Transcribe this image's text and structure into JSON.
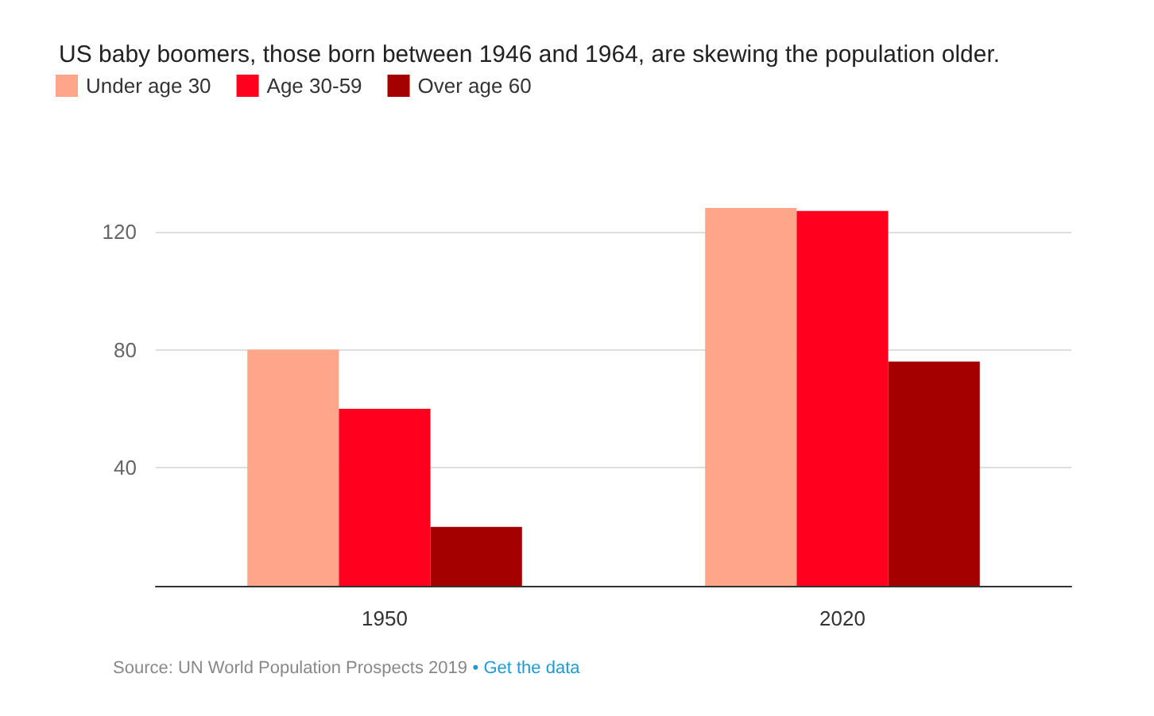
{
  "chart_data": {
    "type": "bar",
    "title": "US baby boomers, those born between 1946 and 1964, are skewing the population older.",
    "categories": [
      "1950",
      "2020"
    ],
    "series": [
      {
        "name": "Under age 30",
        "color": "#ffa68a",
        "values": [
          80,
          128
        ]
      },
      {
        "name": "Age 30-59",
        "color": "#ff001f",
        "values": [
          60,
          127
        ]
      },
      {
        "name": "Over age 60",
        "color": "#a50000",
        "values": [
          20,
          76
        ]
      }
    ],
    "ylim": [
      0,
      128
    ],
    "yticks": [
      {
        "value": 0,
        "label": null
      },
      40,
      80,
      120
    ],
    "grid": "y",
    "legend": "top left",
    "annotations": [
      "Source: UN World Population Prospects 2019",
      "• Get the data"
    ]
  }
}
